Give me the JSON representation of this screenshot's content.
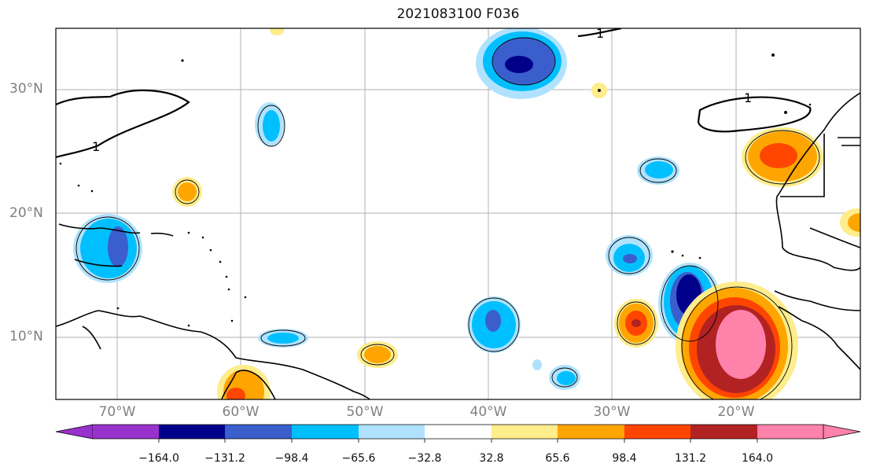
{
  "title": "2021083100 F036",
  "lat_labels": [
    "30°N",
    "20°N",
    "10°N"
  ],
  "lon_labels": [
    "70°W",
    "60°W",
    "50°W",
    "40°W",
    "30°W",
    "20°W"
  ],
  "contour_label": "1",
  "colorbar": {
    "ticks": [
      "−164.0",
      "−131.2",
      "−98.4",
      "−65.6",
      "−32.8",
      "32.8",
      "65.6",
      "98.4",
      "131.2",
      "164.0"
    ],
    "colors": [
      "#9932cc",
      "#00008b",
      "#3a5fcd",
      "#00bfff",
      "#b0e2ff",
      "#ffffff",
      "#ffec8b",
      "#ffa500",
      "#ff4500",
      "#b22222",
      "#ff82ab"
    ]
  }
}
